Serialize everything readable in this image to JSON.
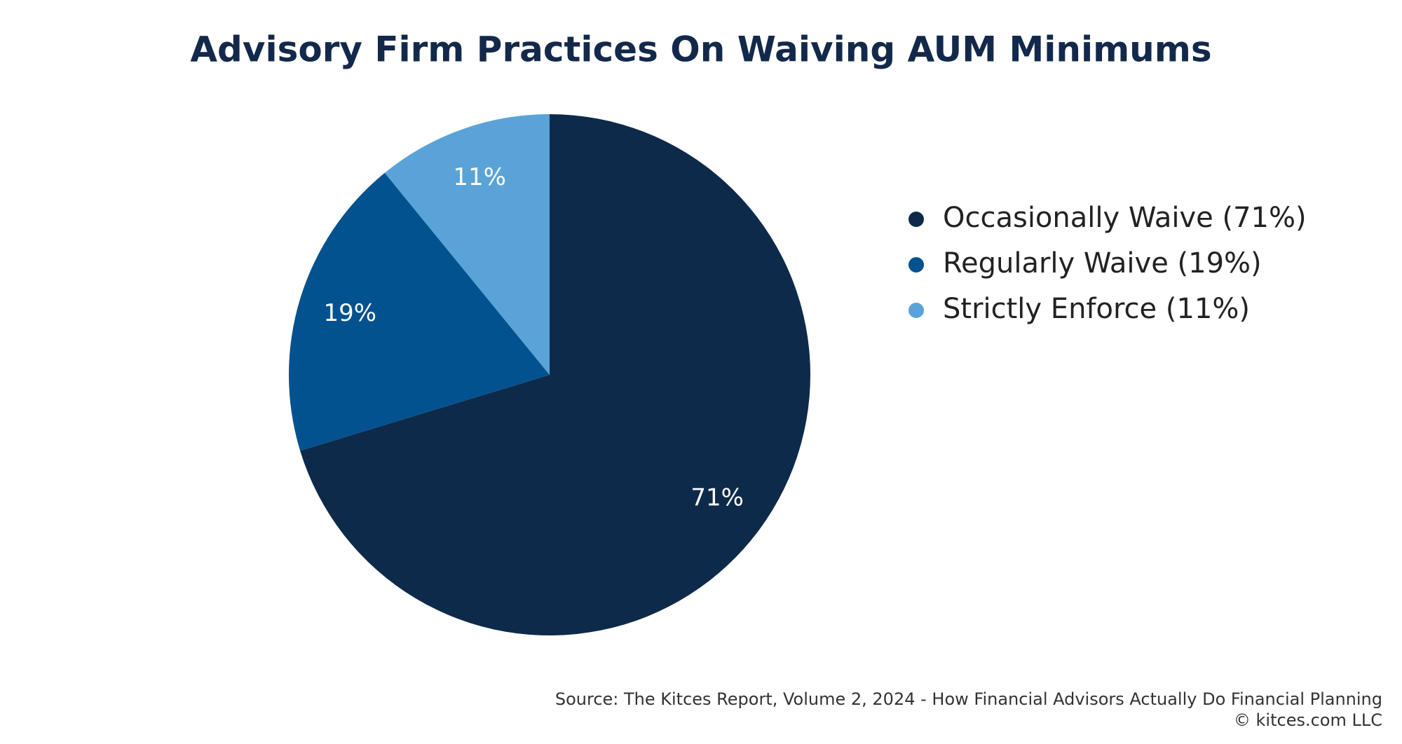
{
  "chart_data": {
    "type": "pie",
    "title": "Advisory Firm Practices On Waiving AUM Minimums",
    "categories": [
      "Occasionally Waive (71%)",
      "Regularly Waive (19%)",
      "Strictly Enforce (11%)"
    ],
    "values": [
      71,
      19,
      11
    ],
    "value_labels": [
      "71%",
      "19%",
      "11%"
    ],
    "colors": [
      "#0e2a4a",
      "#02528f",
      "#5aa3d8"
    ],
    "legend": "right",
    "source": "Source: The Kitces Report, Volume 2, 2024 - How Financial Advisors Actually Do Financial Planning",
    "copyright": "© kitces.com LLC"
  }
}
